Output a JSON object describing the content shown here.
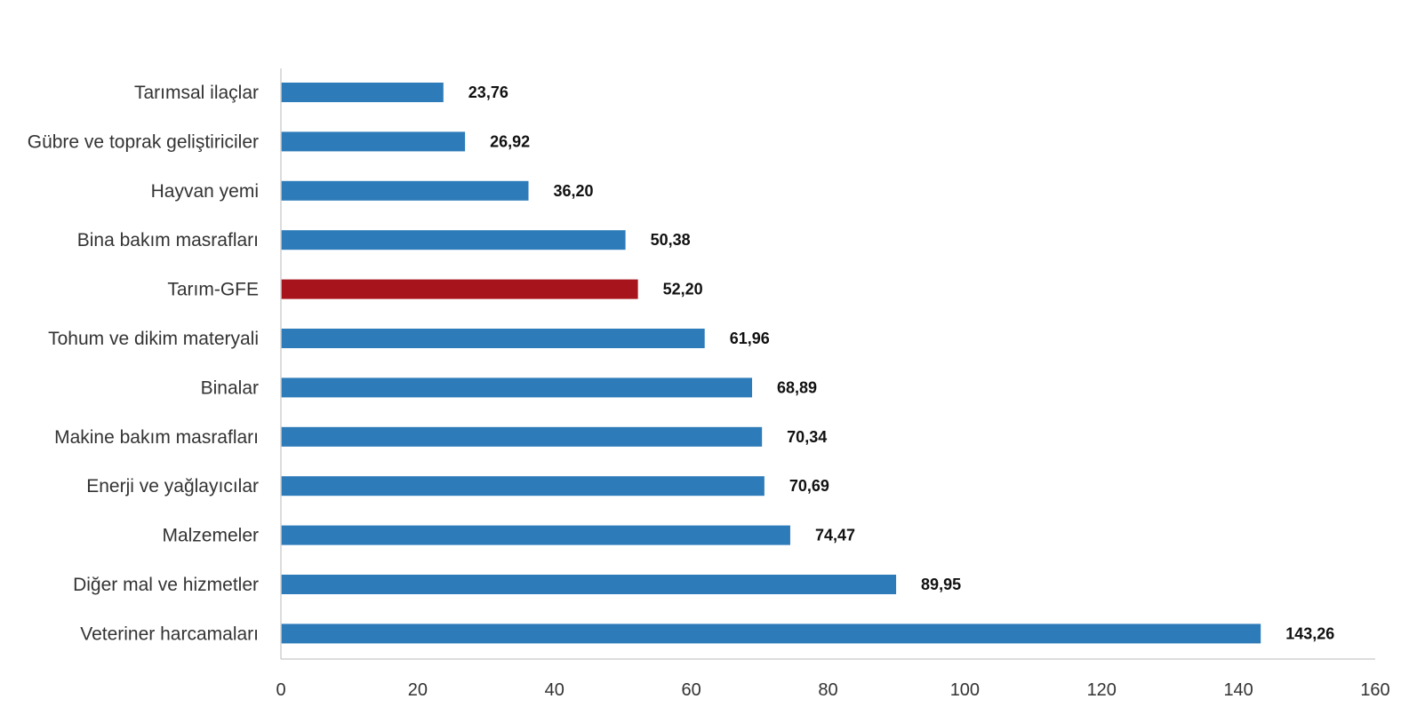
{
  "chart_data": {
    "type": "bar",
    "orientation": "horizontal",
    "title": "",
    "xlabel": "",
    "ylabel": "",
    "categories": [
      "Tarımsal ilaçlar",
      "Gübre ve toprak geliştiriciler",
      "Hayvan yemi",
      "Bina bakım masrafları",
      "Tarım-GFE",
      "Tohum ve dikim materyali",
      "Binalar",
      "Makine bakım masrafları",
      "Enerji  ve yağlayıcılar",
      "Malzemeler",
      "Diğer mal ve hizmetler",
      "Veteriner harcamaları"
    ],
    "values": [
      23.76,
      26.92,
      36.2,
      50.38,
      52.2,
      61.96,
      68.89,
      70.34,
      70.69,
      74.47,
      89.95,
      143.26
    ],
    "value_labels": [
      "23,76",
      "26,92",
      "36,20",
      "50,38",
      "52,20",
      "61,96",
      "68,89",
      "70,34",
      "70,69",
      "74,47",
      "89,95",
      "143,26"
    ],
    "highlight_category": "Tarım-GFE",
    "xlim": [
      0,
      160
    ],
    "x_ticks": [
      0,
      20,
      40,
      60,
      80,
      100,
      120,
      140,
      160
    ],
    "grid": false,
    "legend": "none",
    "colors": {
      "bar": "#2e7bb9",
      "highlight": "#a8141c"
    }
  }
}
